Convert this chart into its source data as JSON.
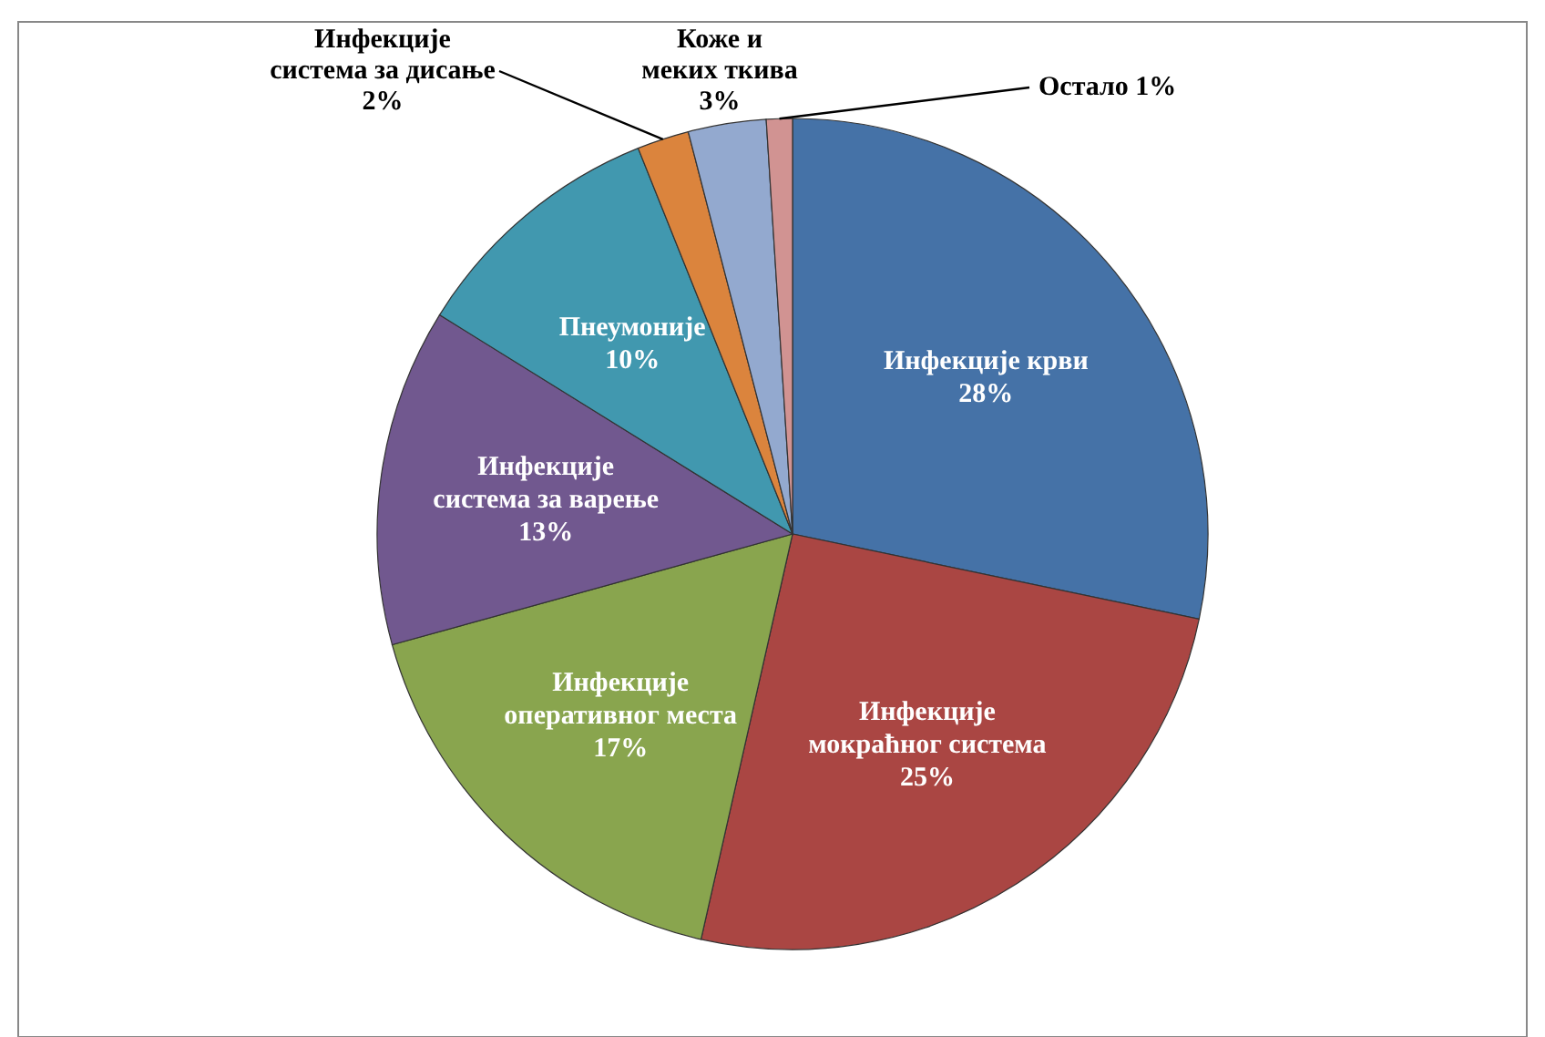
{
  "chart_data": {
    "type": "pie",
    "categories": [
      "Инфекције крви",
      "Инфекције\nмокраћног система",
      "Инфекције\nоперативног места",
      "Инфекције\nсистема за варење",
      "Пнеумоније",
      "Инфекције\nсистема за дисање",
      "Коже и\nмеких ткива",
      "Остало"
    ],
    "values": [
      28,
      25,
      17,
      13,
      10,
      2,
      3,
      1
    ],
    "value_labels": [
      "28%",
      "25%",
      "17%",
      "13%",
      "10%",
      "2%",
      "3%",
      "1%"
    ],
    "colors": [
      "#4572a7",
      "#aa4643",
      "#89a54e",
      "#71588f",
      "#4198af",
      "#db843d",
      "#93a9cf",
      "#d19392"
    ]
  }
}
